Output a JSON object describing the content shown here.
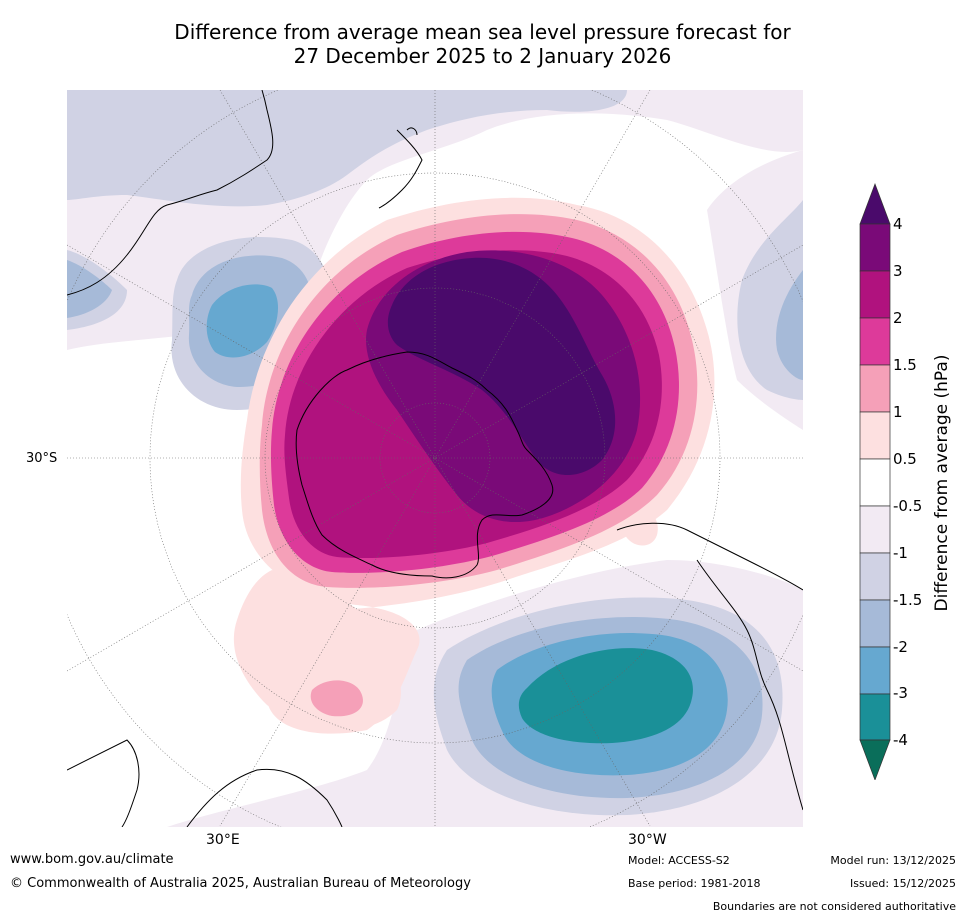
{
  "title": {
    "line1": "Difference from average mean sea level pressure forecast for",
    "line2": "27 December 2025 to 2 January 2026"
  },
  "axes": {
    "lat_label": "30°S",
    "lon_labels": [
      "30°E",
      "30°W"
    ]
  },
  "colorbar": {
    "title": "Difference from average (hPa)",
    "tick_labels": [
      "4",
      "3",
      "2",
      "1.5",
      "1",
      "0.5",
      "-0.5",
      "-1",
      "-1.5",
      "-2",
      "-3",
      "-4"
    ],
    "colors": {
      "gt4": "#4a0a6b",
      "3_4": "#7a0a78",
      "2_3": "#b0127e",
      "1.5_2": "#dd3a9a",
      "1_1.5": "#f5a0b8",
      "0.5_1": "#fde0e0",
      "neutral": "#ffffff",
      "m1_m0.5": "#f2eaf3",
      "m1.5_m1": "#d0d2e4",
      "m2_m1.5": "#a6bad8",
      "m3_m2": "#66a8d0",
      "m4_m3": "#1a9098",
      "lt_m4": "#0a6e5a"
    }
  },
  "footer": {
    "url": "www.bom.gov.au/climate",
    "copyright": "© Commonwealth of Australia 2025, Australian Bureau of Meteorology",
    "model": "Model: ACCESS-S2",
    "base_period": "Base period: 1981-2018",
    "model_run": "Model run: 13/12/2025",
    "issued": "Issued: 15/12/2025",
    "disclaimer": "Boundaries are not considered authoritative"
  }
}
